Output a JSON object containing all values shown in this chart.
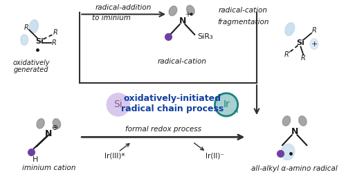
{
  "bg_color": "#ffffff",
  "si_label": "Si",
  "si_label2": "Si",
  "arrow1_text_line1": "radical-addition",
  "arrow1_text_line2": "to iminium",
  "radical_cation_label": "radical-cation",
  "SiR3_label": "SiR₃",
  "arrow2_text_line1": "radical-cation",
  "arrow2_text_line2": "fragmentation",
  "top_left_label_line1": "oxidatively",
  "top_left_label_line2": "generated",
  "center_text_line1": "oxidatively-initiated",
  "center_text_line2": "radical chain process",
  "center_si_label": "Si",
  "center_ir_label": "Ir",
  "bottom_left_label": "iminium cation",
  "formal_redox_text": "formal redox process",
  "IrIII_label": "Ir(III)*",
  "IrII_label": "Ir(II)⁻",
  "bottom_right_label": "all-alkyl α-amino radical",
  "color_purple": "#7040A0",
  "color_gray": "#909090",
  "color_gray_dark": "#606060",
  "color_lightblue": "#B8D4E8",
  "color_lightblue2": "#C8DFF0",
  "color_teal": "#1A8080",
  "color_teal_bg": "#A8D0D0",
  "color_lavender": "#D8C8EC",
  "color_lavender_text": "#806090",
  "color_dark": "#1a1a1a",
  "color_blue_bold": "#1040A0",
  "color_arrow": "#303030",
  "color_box_line": "#303030"
}
